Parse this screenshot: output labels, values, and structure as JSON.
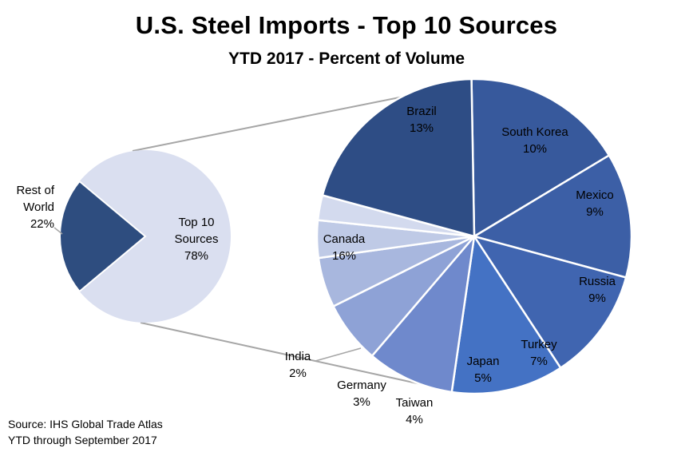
{
  "chart_data": {
    "type": "pie",
    "title": "U.S. Steel Imports - Top 10 Sources",
    "subtitle": "YTD 2017 - Percent of Volume",
    "overview": {
      "slices": [
        {
          "label": "Rest of World",
          "value": 22,
          "display": "22%",
          "color": "#2e4d7f"
        },
        {
          "label": "Top 10 Sources",
          "value": 78,
          "display": "78%",
          "color": "#dadff0"
        }
      ]
    },
    "breakdown": {
      "slices": [
        {
          "label": "Brazil",
          "value": 13,
          "display": "13%",
          "color": "#37599c"
        },
        {
          "label": "South Korea",
          "value": 10,
          "display": "10%",
          "color": "#3c5fa6"
        },
        {
          "label": "Mexico",
          "value": 9,
          "display": "9%",
          "color": "#4065b0"
        },
        {
          "label": "Russia",
          "value": 9,
          "display": "9%",
          "color": "#4472c4"
        },
        {
          "label": "Turkey",
          "value": 7,
          "display": "7%",
          "color": "#6f89cc"
        },
        {
          "label": "Japan",
          "value": 5,
          "display": "5%",
          "color": "#8ea2d6"
        },
        {
          "label": "Taiwan",
          "value": 4,
          "display": "4%",
          "color": "#a8b7de"
        },
        {
          "label": "Germany",
          "value": 3,
          "display": "3%",
          "color": "#bfcae6"
        },
        {
          "label": "India",
          "value": 2,
          "display": "2%",
          "color": "#d3daee"
        },
        {
          "label": "Canada",
          "value": 16,
          "display": "16%",
          "color": "#2e4d85"
        }
      ]
    }
  },
  "source": {
    "line1": "Source: IHS Global Trade Atlas",
    "line2": "YTD through September 2017"
  },
  "colors": {
    "connector": "#a6a6a6",
    "slice_border": "#ffffff"
  }
}
